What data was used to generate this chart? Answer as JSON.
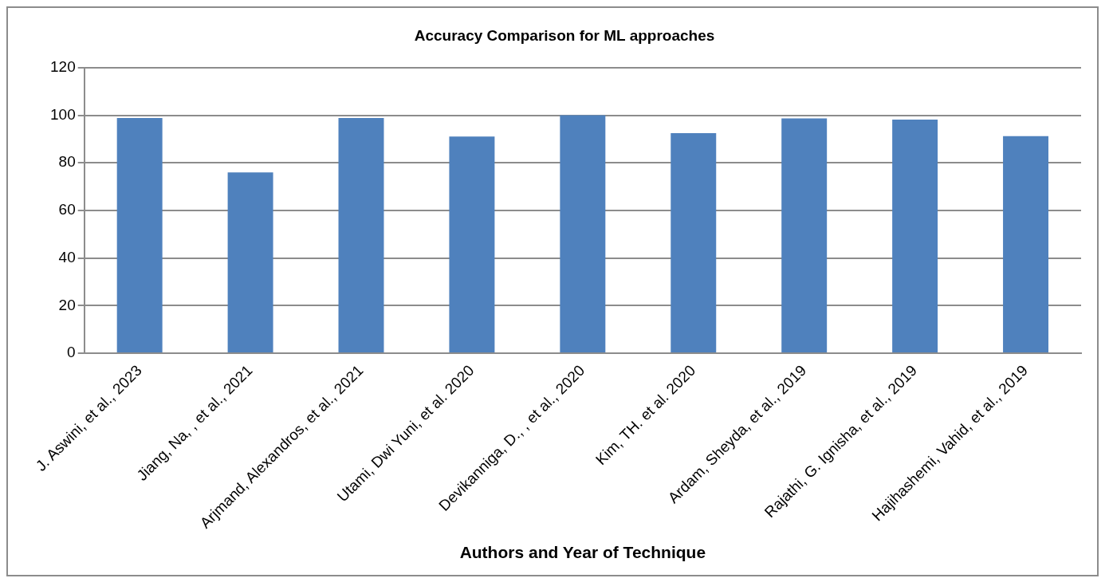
{
  "chart_data": {
    "type": "bar",
    "title": "Accuracy Comparison for ML approaches",
    "xlabel": "Authors and Year of Technique",
    "categories": [
      "J. Aswini, et al., 2023",
      "Jiang, Na, , et al., 2021",
      "Arjmand, Alexandros, et al., 2021",
      "Utami, Dwi Yuni, et al. 2020",
      "Devikanniga, D., , et al., 2020",
      "Kim, TH. et al. 2020",
      "Ardam, Sheyda, et al., 2019",
      "Rajathi, G. Ignisha, et al., 2019",
      "Hajihashemi, Vahid, et al., 2019"
    ],
    "values": [
      98.8,
      76,
      98.8,
      91,
      100,
      92.5,
      98.7,
      98.2,
      91.2
    ],
    "color": "#4f81bd",
    "ylim": [
      0,
      120
    ],
    "yticks": [
      0,
      20,
      40,
      60,
      80,
      100,
      120
    ],
    "grid": "y",
    "legend": false
  }
}
